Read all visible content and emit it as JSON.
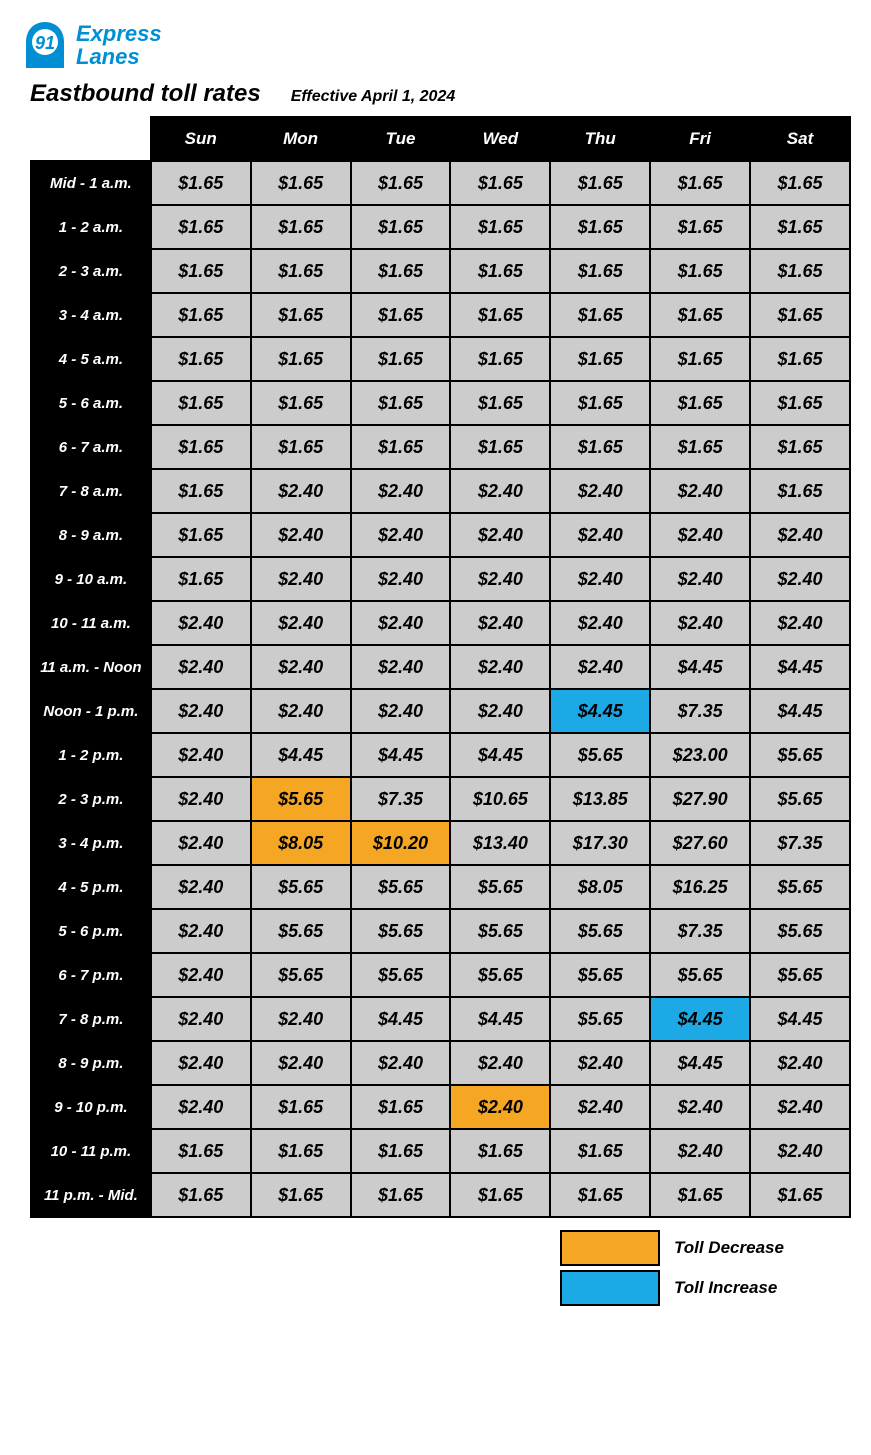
{
  "logo": {
    "brand_top": "Express",
    "brand_bottom": "Lanes",
    "color": "#008fd5"
  },
  "title": {
    "main": "Eastbound toll rates",
    "sub": "Effective April 1, 2024"
  },
  "colors": {
    "cell_bg": "#cccccc",
    "decrease": "#F5A623",
    "increase": "#1CA9E6",
    "header_bg": "#000000",
    "header_fg": "#ffffff",
    "border": "#000000"
  },
  "columns": [
    "Sun",
    "Mon",
    "Tue",
    "Wed",
    "Thu",
    "Fri",
    "Sat"
  ],
  "rows": [
    {
      "time": "Mid - 1 a.m.",
      "cells": [
        {
          "v": "$1.65"
        },
        {
          "v": "$1.65"
        },
        {
          "v": "$1.65"
        },
        {
          "v": "$1.65"
        },
        {
          "v": "$1.65"
        },
        {
          "v": "$1.65"
        },
        {
          "v": "$1.65"
        }
      ]
    },
    {
      "time": "1 - 2 a.m.",
      "cells": [
        {
          "v": "$1.65"
        },
        {
          "v": "$1.65"
        },
        {
          "v": "$1.65"
        },
        {
          "v": "$1.65"
        },
        {
          "v": "$1.65"
        },
        {
          "v": "$1.65"
        },
        {
          "v": "$1.65"
        }
      ]
    },
    {
      "time": "2 - 3 a.m.",
      "cells": [
        {
          "v": "$1.65"
        },
        {
          "v": "$1.65"
        },
        {
          "v": "$1.65"
        },
        {
          "v": "$1.65"
        },
        {
          "v": "$1.65"
        },
        {
          "v": "$1.65"
        },
        {
          "v": "$1.65"
        }
      ]
    },
    {
      "time": "3 - 4 a.m.",
      "cells": [
        {
          "v": "$1.65"
        },
        {
          "v": "$1.65"
        },
        {
          "v": "$1.65"
        },
        {
          "v": "$1.65"
        },
        {
          "v": "$1.65"
        },
        {
          "v": "$1.65"
        },
        {
          "v": "$1.65"
        }
      ]
    },
    {
      "time": "4 - 5 a.m.",
      "cells": [
        {
          "v": "$1.65"
        },
        {
          "v": "$1.65"
        },
        {
          "v": "$1.65"
        },
        {
          "v": "$1.65"
        },
        {
          "v": "$1.65"
        },
        {
          "v": "$1.65"
        },
        {
          "v": "$1.65"
        }
      ]
    },
    {
      "time": "5 - 6 a.m.",
      "cells": [
        {
          "v": "$1.65"
        },
        {
          "v": "$1.65"
        },
        {
          "v": "$1.65"
        },
        {
          "v": "$1.65"
        },
        {
          "v": "$1.65"
        },
        {
          "v": "$1.65"
        },
        {
          "v": "$1.65"
        }
      ]
    },
    {
      "time": "6 - 7 a.m.",
      "cells": [
        {
          "v": "$1.65"
        },
        {
          "v": "$1.65"
        },
        {
          "v": "$1.65"
        },
        {
          "v": "$1.65"
        },
        {
          "v": "$1.65"
        },
        {
          "v": "$1.65"
        },
        {
          "v": "$1.65"
        }
      ]
    },
    {
      "time": "7 - 8 a.m.",
      "cells": [
        {
          "v": "$1.65"
        },
        {
          "v": "$2.40"
        },
        {
          "v": "$2.40"
        },
        {
          "v": "$2.40"
        },
        {
          "v": "$2.40"
        },
        {
          "v": "$2.40"
        },
        {
          "v": "$1.65"
        }
      ]
    },
    {
      "time": "8 - 9 a.m.",
      "cells": [
        {
          "v": "$1.65"
        },
        {
          "v": "$2.40"
        },
        {
          "v": "$2.40"
        },
        {
          "v": "$2.40"
        },
        {
          "v": "$2.40"
        },
        {
          "v": "$2.40"
        },
        {
          "v": "$2.40"
        }
      ]
    },
    {
      "time": "9 - 10 a.m.",
      "cells": [
        {
          "v": "$1.65"
        },
        {
          "v": "$2.40"
        },
        {
          "v": "$2.40"
        },
        {
          "v": "$2.40"
        },
        {
          "v": "$2.40"
        },
        {
          "v": "$2.40"
        },
        {
          "v": "$2.40"
        }
      ]
    },
    {
      "time": "10 - 11 a.m.",
      "cells": [
        {
          "v": "$2.40"
        },
        {
          "v": "$2.40"
        },
        {
          "v": "$2.40"
        },
        {
          "v": "$2.40"
        },
        {
          "v": "$2.40"
        },
        {
          "v": "$2.40"
        },
        {
          "v": "$2.40"
        }
      ]
    },
    {
      "time": "11 a.m. - Noon",
      "cells": [
        {
          "v": "$2.40"
        },
        {
          "v": "$2.40"
        },
        {
          "v": "$2.40"
        },
        {
          "v": "$2.40"
        },
        {
          "v": "$2.40"
        },
        {
          "v": "$4.45"
        },
        {
          "v": "$4.45"
        }
      ]
    },
    {
      "time": "Noon - 1 p.m.",
      "cells": [
        {
          "v": "$2.40"
        },
        {
          "v": "$2.40"
        },
        {
          "v": "$2.40"
        },
        {
          "v": "$2.40"
        },
        {
          "v": "$4.45",
          "hl": "increase"
        },
        {
          "v": "$7.35"
        },
        {
          "v": "$4.45"
        }
      ]
    },
    {
      "time": "1 - 2 p.m.",
      "cells": [
        {
          "v": "$2.40"
        },
        {
          "v": "$4.45"
        },
        {
          "v": "$4.45"
        },
        {
          "v": "$4.45"
        },
        {
          "v": "$5.65"
        },
        {
          "v": "$23.00"
        },
        {
          "v": "$5.65"
        }
      ]
    },
    {
      "time": "2 - 3 p.m.",
      "cells": [
        {
          "v": "$2.40"
        },
        {
          "v": "$5.65",
          "hl": "decrease"
        },
        {
          "v": "$7.35"
        },
        {
          "v": "$10.65"
        },
        {
          "v": "$13.85"
        },
        {
          "v": "$27.90"
        },
        {
          "v": "$5.65"
        }
      ]
    },
    {
      "time": "3 - 4 p.m.",
      "cells": [
        {
          "v": "$2.40"
        },
        {
          "v": "$8.05",
          "hl": "decrease"
        },
        {
          "v": "$10.20",
          "hl": "decrease"
        },
        {
          "v": "$13.40"
        },
        {
          "v": "$17.30"
        },
        {
          "v": "$27.60"
        },
        {
          "v": "$7.35"
        }
      ]
    },
    {
      "time": "4 - 5 p.m.",
      "cells": [
        {
          "v": "$2.40"
        },
        {
          "v": "$5.65"
        },
        {
          "v": "$5.65"
        },
        {
          "v": "$5.65"
        },
        {
          "v": "$8.05"
        },
        {
          "v": "$16.25"
        },
        {
          "v": "$5.65"
        }
      ]
    },
    {
      "time": "5 - 6 p.m.",
      "cells": [
        {
          "v": "$2.40"
        },
        {
          "v": "$5.65"
        },
        {
          "v": "$5.65"
        },
        {
          "v": "$5.65"
        },
        {
          "v": "$5.65"
        },
        {
          "v": "$7.35"
        },
        {
          "v": "$5.65"
        }
      ]
    },
    {
      "time": "6 - 7 p.m.",
      "cells": [
        {
          "v": "$2.40"
        },
        {
          "v": "$5.65"
        },
        {
          "v": "$5.65"
        },
        {
          "v": "$5.65"
        },
        {
          "v": "$5.65"
        },
        {
          "v": "$5.65"
        },
        {
          "v": "$5.65"
        }
      ]
    },
    {
      "time": "7 - 8 p.m.",
      "cells": [
        {
          "v": "$2.40"
        },
        {
          "v": "$2.40"
        },
        {
          "v": "$4.45"
        },
        {
          "v": "$4.45"
        },
        {
          "v": "$5.65"
        },
        {
          "v": "$4.45",
          "hl": "increase"
        },
        {
          "v": "$4.45"
        }
      ]
    },
    {
      "time": "8 - 9 p.m.",
      "cells": [
        {
          "v": "$2.40"
        },
        {
          "v": "$2.40"
        },
        {
          "v": "$2.40"
        },
        {
          "v": "$2.40"
        },
        {
          "v": "$2.40"
        },
        {
          "v": "$4.45"
        },
        {
          "v": "$2.40"
        }
      ]
    },
    {
      "time": "9 - 10 p.m.",
      "cells": [
        {
          "v": "$2.40"
        },
        {
          "v": "$1.65"
        },
        {
          "v": "$1.65"
        },
        {
          "v": "$2.40",
          "hl": "decrease"
        },
        {
          "v": "$2.40"
        },
        {
          "v": "$2.40"
        },
        {
          "v": "$2.40"
        }
      ]
    },
    {
      "time": "10 - 11 p.m.",
      "cells": [
        {
          "v": "$1.65"
        },
        {
          "v": "$1.65"
        },
        {
          "v": "$1.65"
        },
        {
          "v": "$1.65"
        },
        {
          "v": "$1.65"
        },
        {
          "v": "$2.40"
        },
        {
          "v": "$2.40"
        }
      ]
    },
    {
      "time": "11 p.m. - Mid.",
      "cells": [
        {
          "v": "$1.65"
        },
        {
          "v": "$1.65"
        },
        {
          "v": "$1.65"
        },
        {
          "v": "$1.65"
        },
        {
          "v": "$1.65"
        },
        {
          "v": "$1.65"
        },
        {
          "v": "$1.65"
        }
      ]
    }
  ],
  "legend": [
    {
      "label": "Toll Decrease",
      "color_key": "decrease"
    },
    {
      "label": "Toll Increase",
      "color_key": "increase"
    }
  ]
}
